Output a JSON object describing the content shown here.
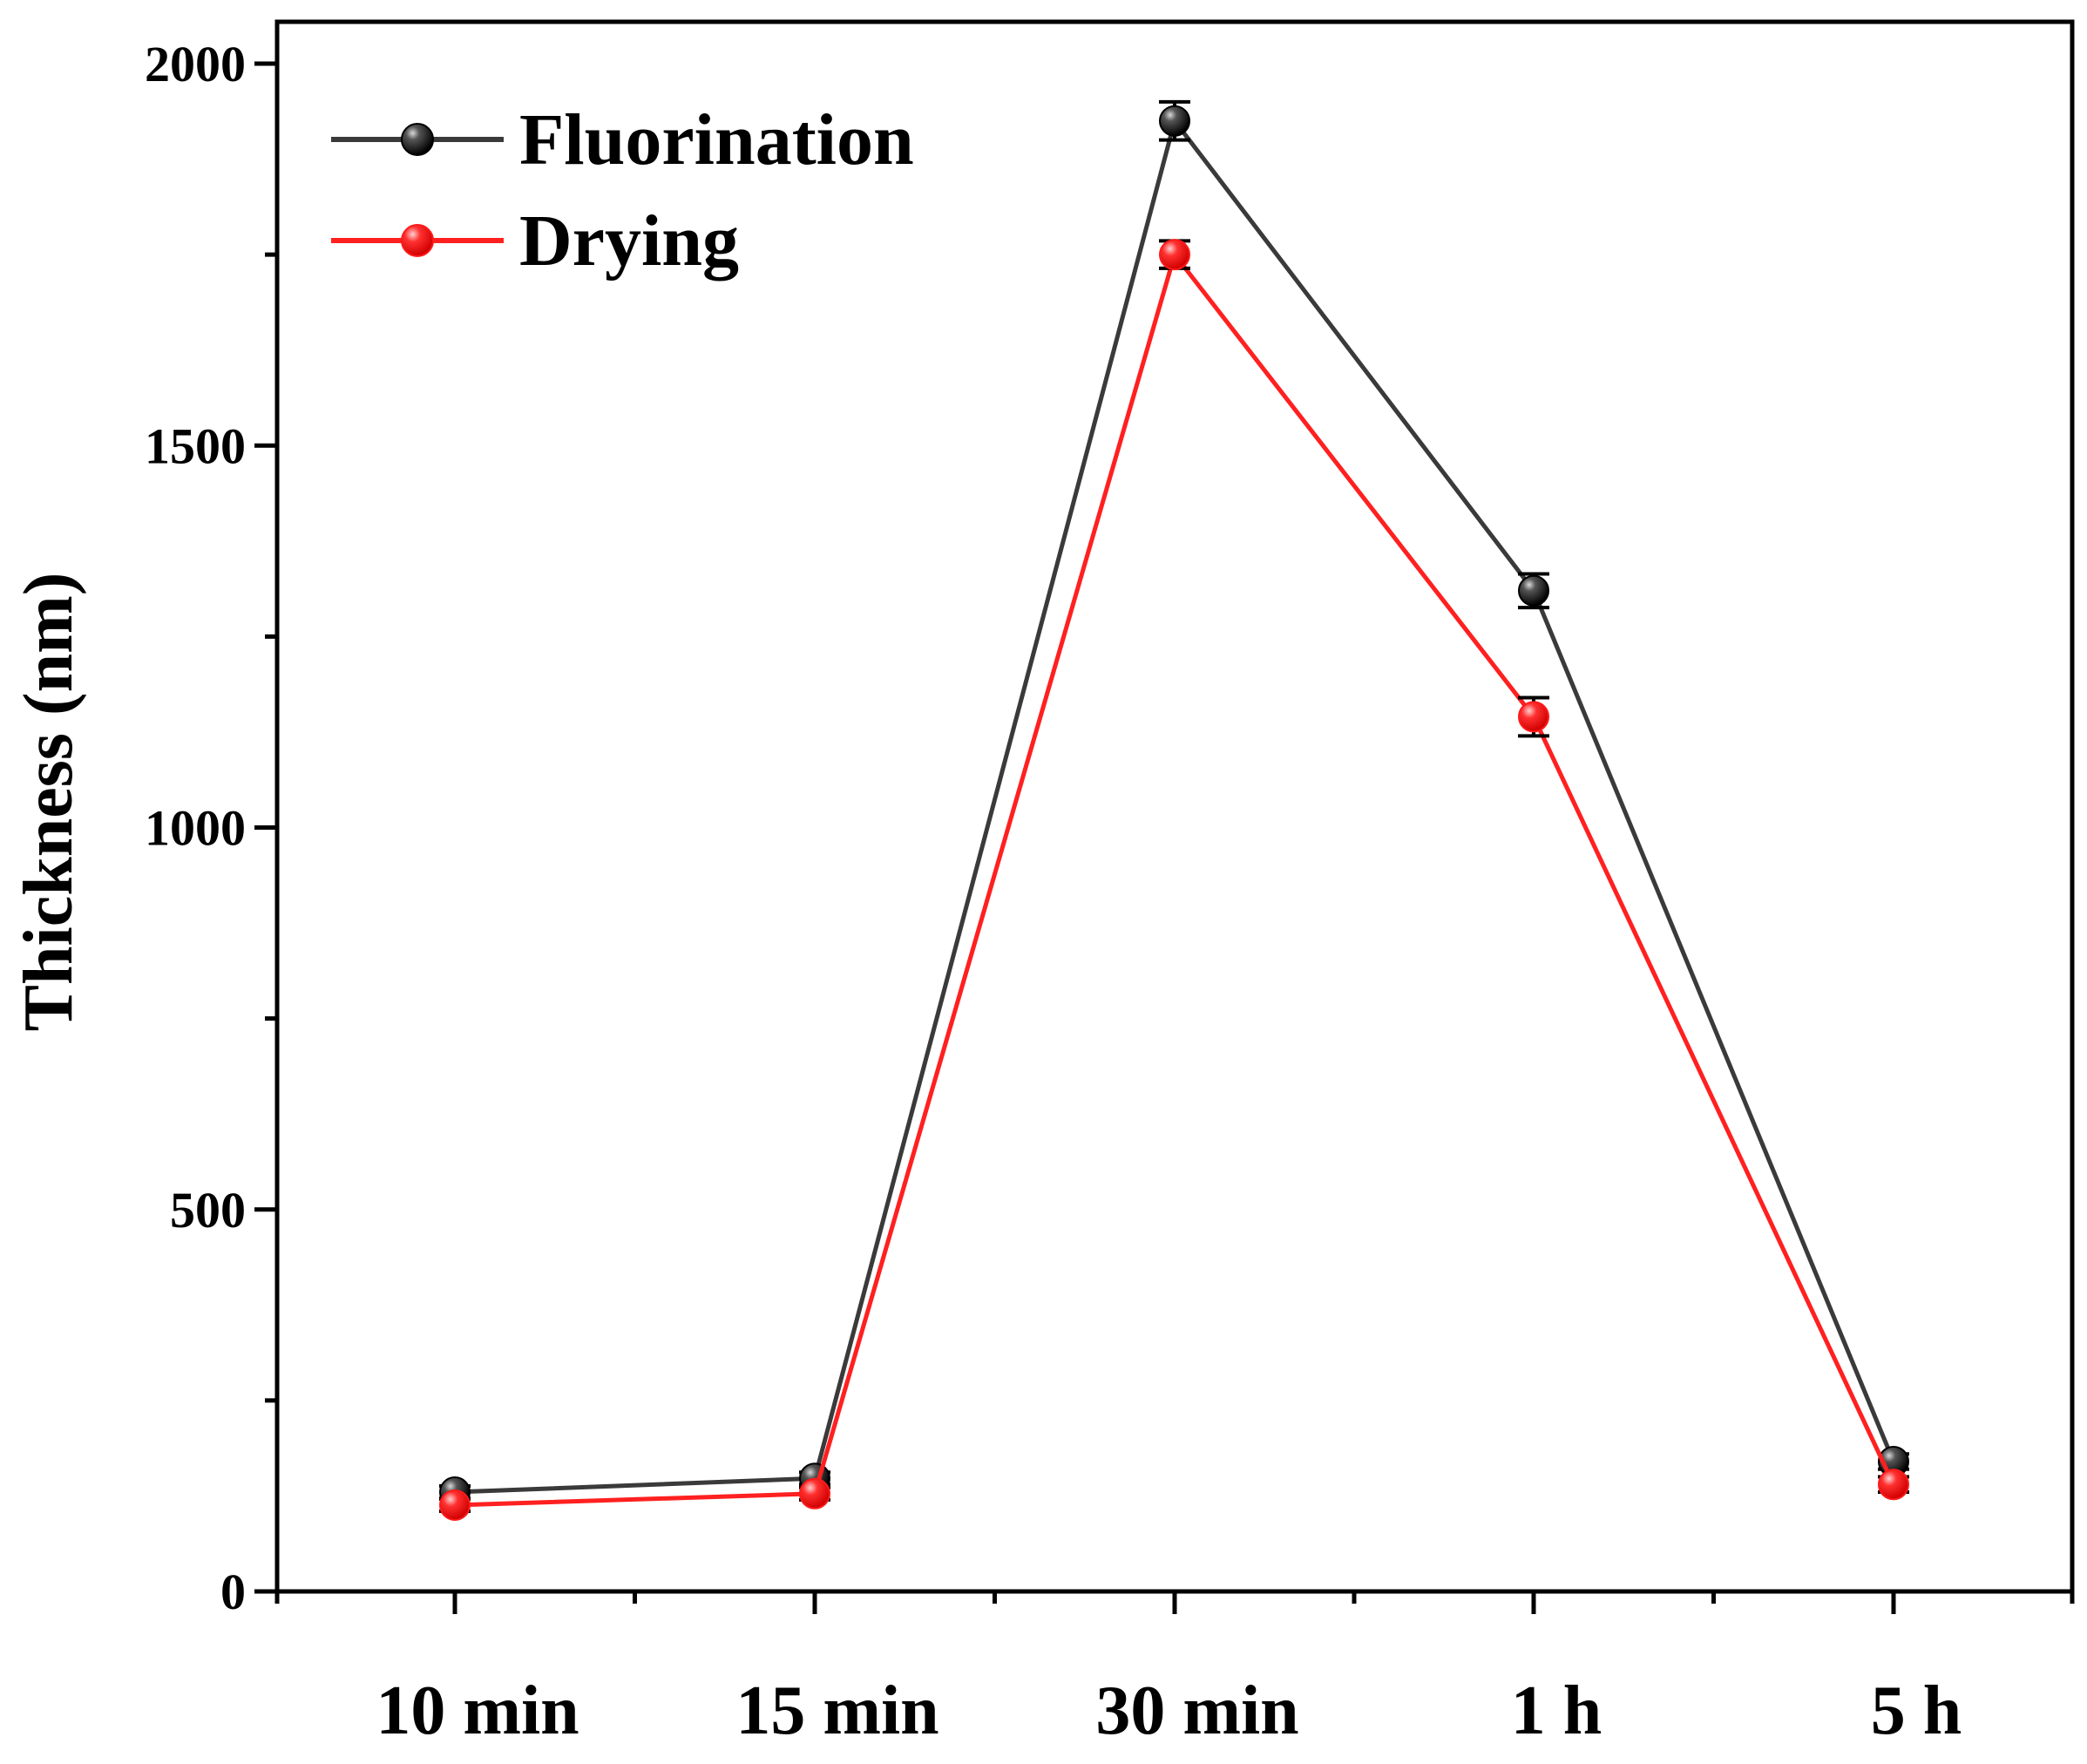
{
  "chart_data": {
    "type": "line",
    "title": "",
    "xlabel": "",
    "ylabel": "Thickness (nm)",
    "categories": [
      "10 min",
      "15 min",
      "30 min",
      "1 h",
      "5 h"
    ],
    "ylim": [
      0,
      2050
    ],
    "yticks": [
      0,
      500,
      1000,
      1500,
      2000
    ],
    "yminor_ticks": [
      250,
      750,
      1250,
      1750
    ],
    "legend_position": "top-left",
    "series": [
      {
        "name": "Fluorination",
        "color": "#3a3a3a",
        "marker_color": "#000000",
        "values": [
          130,
          148,
          1925,
          1310,
          170
        ],
        "errors": [
          8,
          8,
          25,
          22,
          10
        ]
      },
      {
        "name": "Drying",
        "color": "#ff2020",
        "marker_color": "#ff1a1a",
        "values": [
          113,
          128,
          1750,
          1145,
          140
        ],
        "errors": [
          8,
          8,
          18,
          25,
          10
        ]
      }
    ]
  }
}
